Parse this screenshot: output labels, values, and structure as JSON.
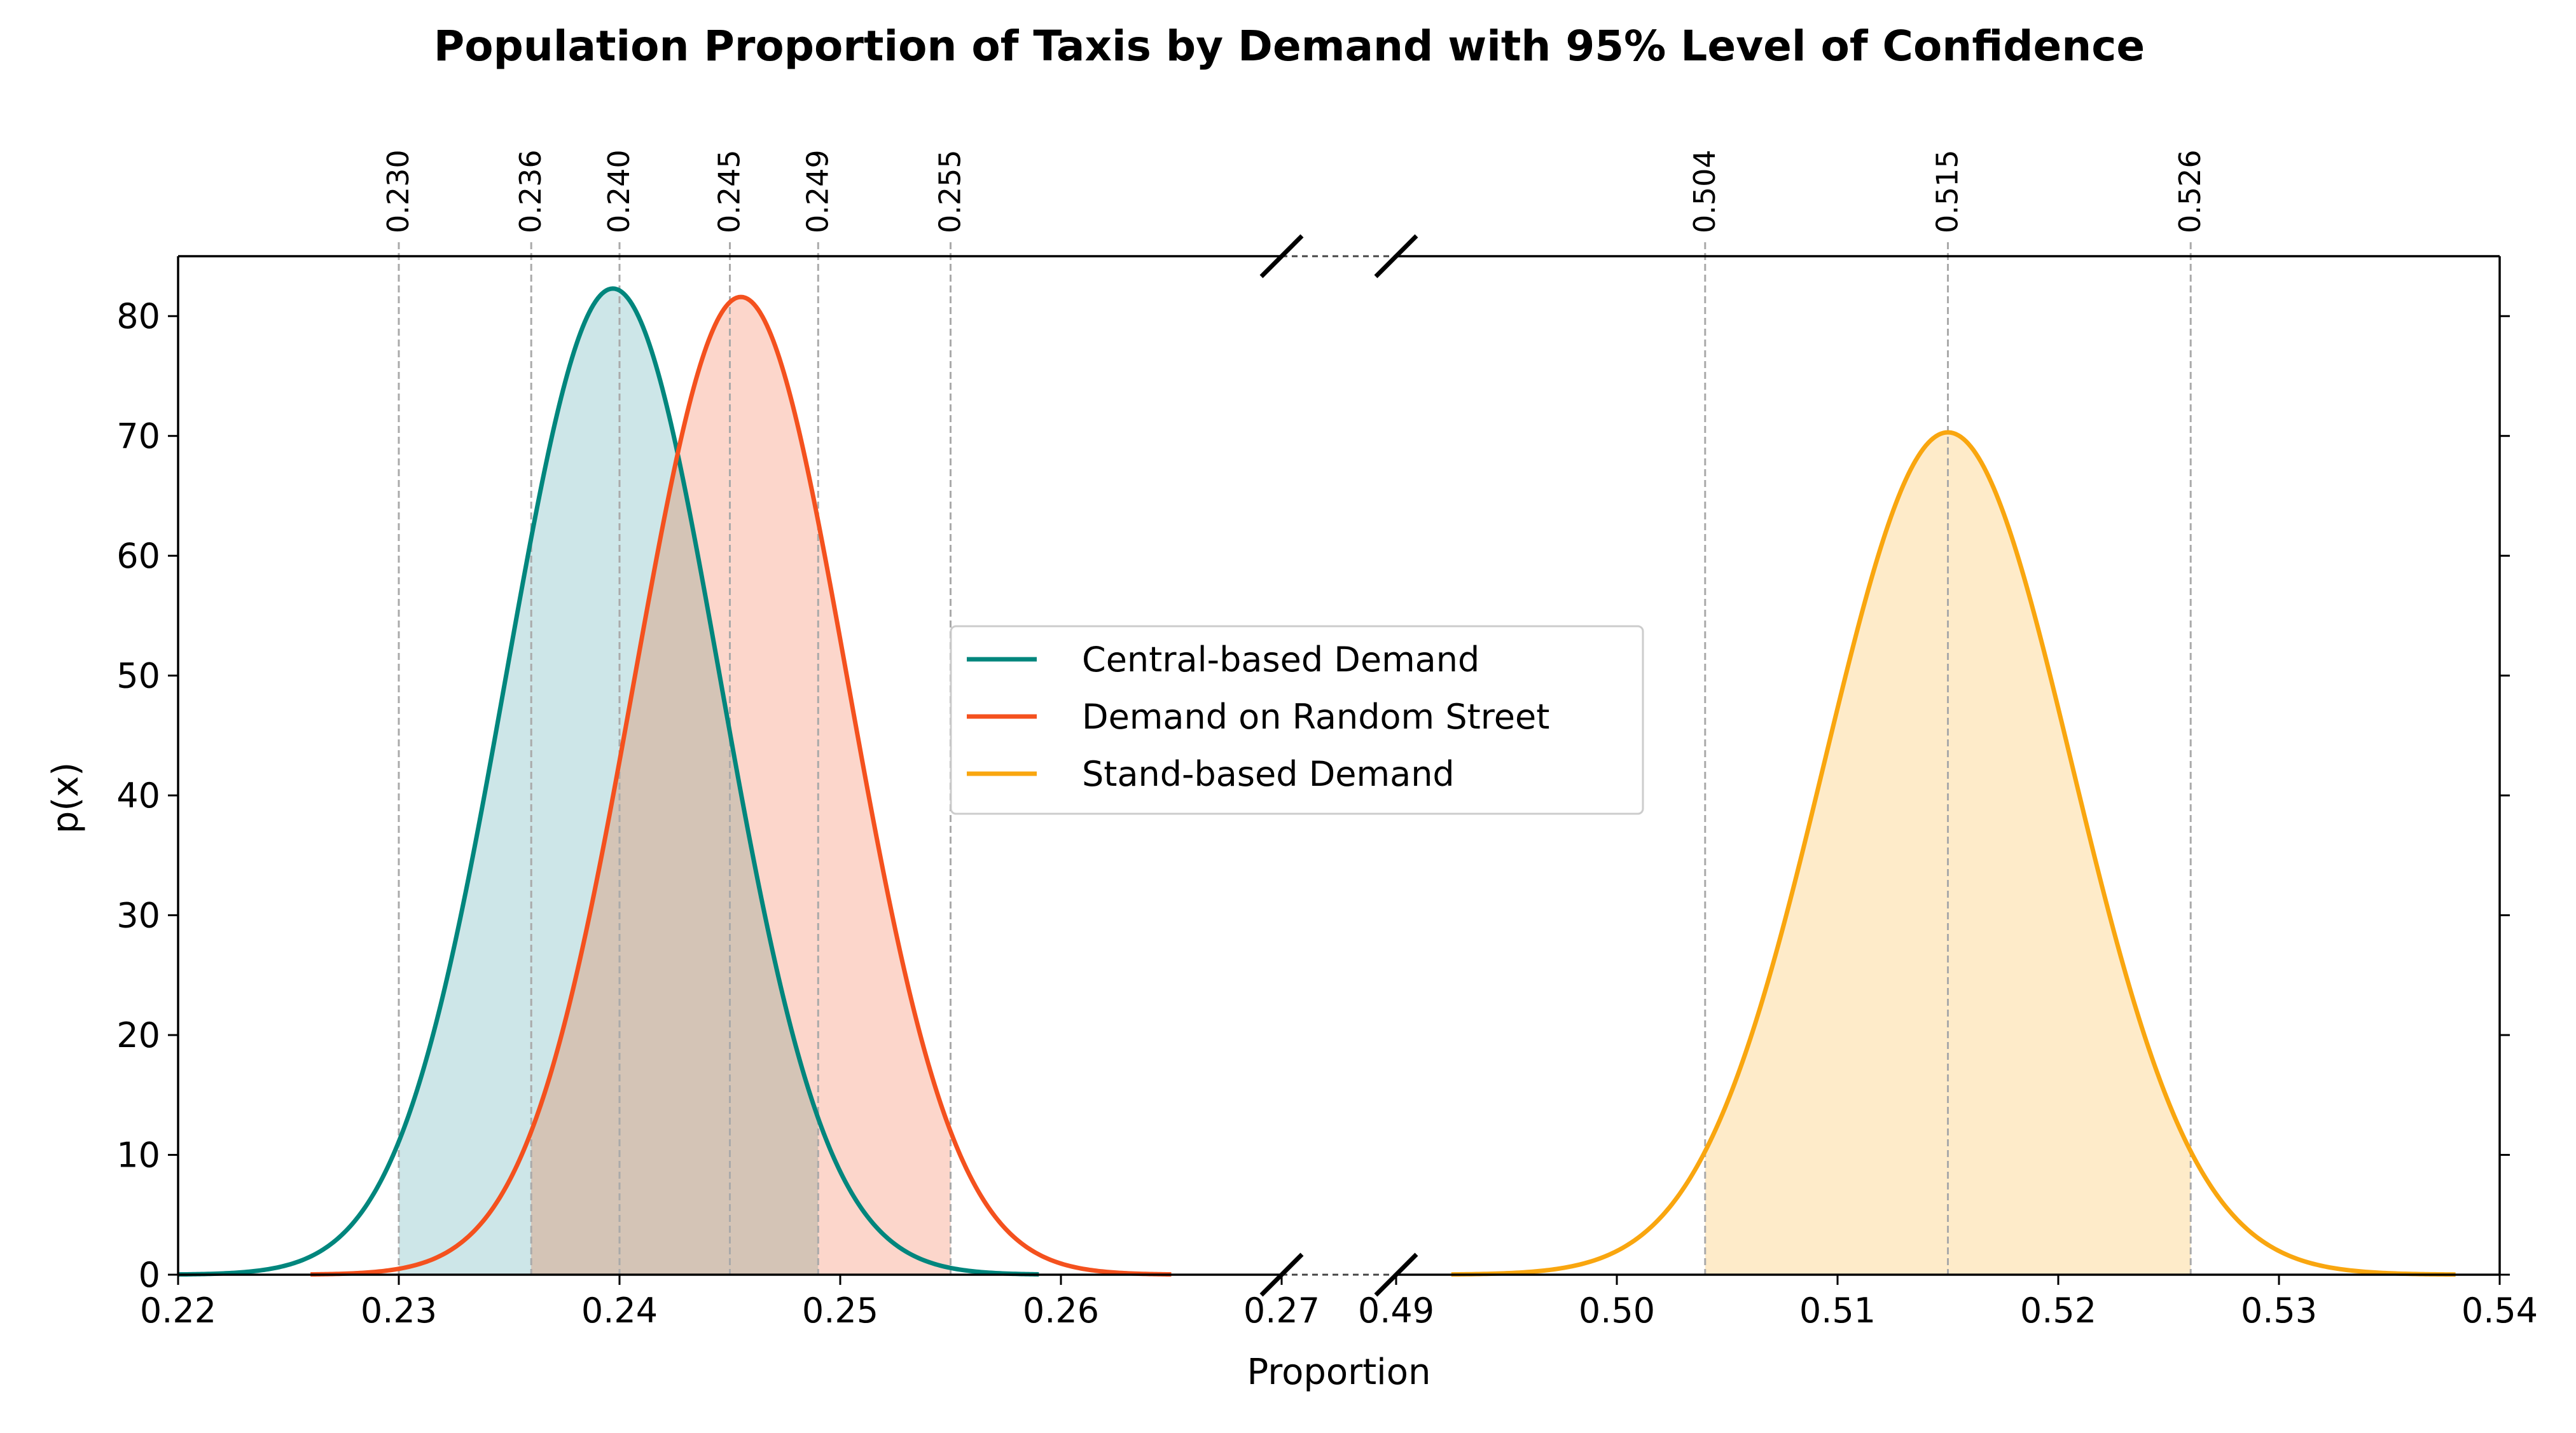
{
  "chart_data": {
    "type": "line",
    "title": "Population Proportion of Taxis by Demand with 95% Level of Confidence",
    "xlabel": "Proportion",
    "ylabel": "p(x)",
    "broken_x_axis": true,
    "xlim_left": [
      0.22,
      0.27
    ],
    "xlim_right": [
      0.49,
      0.54
    ],
    "ylim": [
      0,
      85
    ],
    "x_ticks_left": [
      "0.22",
      "0.23",
      "0.24",
      "0.25",
      "0.26",
      "0.27"
    ],
    "x_ticks_right": [
      "0.49",
      "0.50",
      "0.51",
      "0.52",
      "0.53",
      "0.54"
    ],
    "y_ticks": [
      "0",
      "10",
      "20",
      "30",
      "40",
      "50",
      "60",
      "70",
      "80"
    ],
    "top_tick_labels": [
      "0.230",
      "0.236",
      "0.240",
      "0.245",
      "0.249",
      "0.255",
      "0.504",
      "0.515",
      "0.526"
    ],
    "grid": false,
    "legend_position": "center",
    "series": [
      {
        "name": "Central-based Demand",
        "color": "#00867d",
        "fill": "#cde6e8",
        "mean": 0.2397,
        "peak": 82.3,
        "ci": [
          0.23,
          0.249
        ],
        "x_range": [
          0.22,
          0.259
        ],
        "panel": "left"
      },
      {
        "name": "Demand on Random Street",
        "color": "#f4511e",
        "fill": "#fcd6cb",
        "mean": 0.2455,
        "peak": 81.6,
        "ci": [
          0.236,
          0.255
        ],
        "x_range": [
          0.226,
          0.265
        ],
        "panel": "left"
      },
      {
        "name": "Stand-based Demand",
        "color": "#f9a60f",
        "fill": "#feebc9",
        "mean": 0.515,
        "peak": 70.3,
        "ci": [
          0.504,
          0.526
        ],
        "x_range": [
          0.4925,
          0.538
        ],
        "panel": "right"
      }
    ],
    "overlap_fill": "#d4c4b6"
  }
}
